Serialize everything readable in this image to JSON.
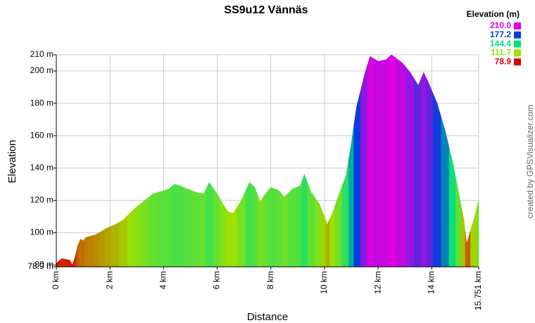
{
  "chart_data": {
    "type": "area",
    "title": "SS9u12 Vännäs",
    "x_label": "Distance",
    "y_label": "Elevation",
    "credit": "created by GPSVisualizer.com",
    "legend_title": "Elevation (m)",
    "legend": [
      {
        "value": 210,
        "label": "210.0",
        "color": "#e000e0"
      },
      {
        "value": 177.2,
        "label": "177.2",
        "color": "#0040e0"
      },
      {
        "value": 144.4,
        "label": "144.4",
        "color": "#00e080"
      },
      {
        "value": 111.7,
        "label": "111.7",
        "color": "#a0e000"
      },
      {
        "value": 78.9,
        "label": "78.9",
        "color": "#e00000"
      }
    ],
    "x": [
      0,
      0.2,
      0.5,
      0.6,
      0.7,
      0.8,
      0.9,
      1.0,
      1.1,
      1.3,
      1.5,
      1.7,
      1.9,
      2.2,
      2.5,
      2.8,
      3.0,
      3.3,
      3.6,
      4.0,
      4.2,
      4.4,
      4.6,
      4.9,
      5.2,
      5.5,
      5.7,
      6.0,
      6.2,
      6.4,
      6.6,
      6.9,
      7.2,
      7.4,
      7.6,
      7.8,
      8.0,
      8.3,
      8.5,
      8.8,
      9.1,
      9.25,
      9.5,
      9.8,
      10.0,
      10.1,
      10.3,
      10.5,
      10.8,
      11.0,
      11.2,
      11.5,
      11.7,
      12.0,
      12.3,
      12.5,
      12.9,
      13.2,
      13.5,
      13.7,
      13.9,
      14.2,
      14.5,
      14.8,
      15.0,
      15.2,
      15.3,
      15.6,
      15.751
    ],
    "values": [
      81,
      84,
      83,
      80,
      85,
      92,
      96,
      95,
      97,
      98,
      99,
      101,
      103,
      105,
      108,
      113,
      116,
      120,
      124,
      126,
      127,
      130,
      129,
      127,
      125,
      124,
      131,
      124,
      118,
      113,
      112,
      120,
      131,
      128,
      119,
      124,
      128,
      126,
      122,
      127,
      129,
      136,
      125,
      118,
      110,
      105,
      112,
      122,
      135,
      155,
      178,
      198,
      209,
      206,
      207,
      210,
      205,
      199,
      191,
      199,
      192,
      180,
      163,
      142,
      125,
      108,
      93,
      110,
      120
    ],
    "xlim": [
      0,
      15.751
    ],
    "ylim": [
      78.9,
      210
    ],
    "xticks": [
      {
        "value": 0,
        "label": "0 km"
      },
      {
        "value": 2,
        "label": "2 km"
      },
      {
        "value": 4,
        "label": "4 km"
      },
      {
        "value": 6,
        "label": "6 km"
      },
      {
        "value": 8,
        "label": "8 km"
      },
      {
        "value": 10,
        "label": "10 km"
      },
      {
        "value": 12,
        "label": "12 km"
      },
      {
        "value": 14,
        "label": "14 km"
      },
      {
        "value": 15.751,
        "label": "15.751 km"
      }
    ],
    "yticks": [
      {
        "value": 78.9,
        "label": "78.9 m"
      },
      {
        "value": 80,
        "label": "80 m"
      },
      {
        "value": 100,
        "label": "100 m"
      },
      {
        "value": 120,
        "label": "120 m"
      },
      {
        "value": 140,
        "label": "140 m"
      },
      {
        "value": 160,
        "label": "160 m"
      },
      {
        "value": 180,
        "label": "180 m"
      },
      {
        "value": 200,
        "label": "200 m"
      },
      {
        "value": 210,
        "label": "210 m"
      }
    ],
    "grid": true
  }
}
